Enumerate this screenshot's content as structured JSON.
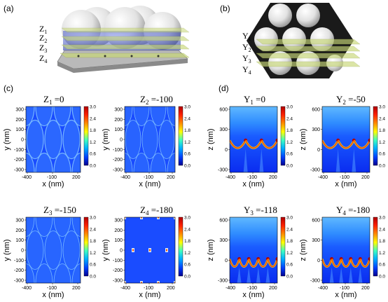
{
  "panel_labels": {
    "a": "(a)",
    "b": "(b)",
    "c": "(c)",
    "d": "(d)"
  },
  "z_planes": [
    "Z",
    "Z",
    "Z",
    "Z"
  ],
  "y_planes": [
    "Y",
    "Y",
    "Y",
    "Y"
  ],
  "plane_subscripts": [
    "1",
    "2",
    "3",
    "4"
  ],
  "maps_c": [
    {
      "var": "Z",
      "sub": "1",
      "value": " =0"
    },
    {
      "var": "Z",
      "sub": "2",
      "value": " =-100"
    },
    {
      "var": "Z",
      "sub": "3",
      "value": " =-150"
    },
    {
      "var": "Z",
      "sub": "4",
      "value": " =-180"
    }
  ],
  "maps_d": [
    {
      "var": "Y",
      "sub": "1",
      "value": " =0"
    },
    {
      "var": "Y",
      "sub": "2",
      "value": " =-50"
    },
    {
      "var": "Y",
      "sub": "3",
      "value": " =-118"
    },
    {
      "var": "Y",
      "sub": "4",
      "value": " =-180"
    }
  ],
  "axes_c": {
    "xlabel": "x (nm)",
    "ylabel": "y (nm)",
    "xticks": [
      "-400",
      "-100",
      "200"
    ],
    "yticks": [
      "300",
      "200",
      "100",
      "0",
      "-100",
      "-200",
      "-300"
    ]
  },
  "axes_d": {
    "xlabel": "x (nm)",
    "ylabel": "z (nm)",
    "xticks": [
      "-400",
      "-100",
      "200"
    ],
    "yticks": [
      "600",
      "300",
      "0",
      "-300"
    ]
  },
  "colorbar": {
    "ticks": [
      "3.0",
      "2.4",
      "1.8",
      "1.2",
      "0.6",
      "0.0"
    ],
    "colors": [
      "#b00000",
      "#ff2000",
      "#ff9000",
      "#ffff00",
      "#40ffc0",
      "#00b0ff",
      "#0040ff",
      "#000090"
    ]
  },
  "chart_data": [
    {
      "type": "heatmap",
      "title": "Z1 =0",
      "xlabel": "x (nm)",
      "ylabel": "y (nm)",
      "colorbar_range": [
        0.0,
        3.0
      ]
    },
    {
      "type": "heatmap",
      "title": "Z2 =-100",
      "xlabel": "x (nm)",
      "ylabel": "y (nm)",
      "colorbar_range": [
        0.0,
        3.0
      ]
    },
    {
      "type": "heatmap",
      "title": "Z3 =-150",
      "xlabel": "x (nm)",
      "ylabel": "y (nm)",
      "colorbar_range": [
        0.0,
        3.0
      ]
    },
    {
      "type": "heatmap",
      "title": "Z4 =-180",
      "xlabel": "x (nm)",
      "ylabel": "y (nm)",
      "colorbar_range": [
        0.0,
        3.0
      ]
    },
    {
      "type": "heatmap",
      "title": "Y1 =0",
      "xlabel": "x (nm)",
      "ylabel": "z (nm)",
      "colorbar_range": [
        0.0,
        3.0
      ]
    },
    {
      "type": "heatmap",
      "title": "Y2 =-50",
      "xlabel": "x (nm)",
      "ylabel": "z (nm)",
      "colorbar_range": [
        0.0,
        3.0
      ]
    },
    {
      "type": "heatmap",
      "title": "Y3 =-118",
      "xlabel": "x (nm)",
      "ylabel": "z (nm)",
      "colorbar_range": [
        0.0,
        3.0
      ]
    },
    {
      "type": "heatmap",
      "title": "Y4 =-180",
      "xlabel": "x (nm)",
      "ylabel": "z (nm)",
      "colorbar_range": [
        0.0,
        3.0
      ]
    }
  ]
}
